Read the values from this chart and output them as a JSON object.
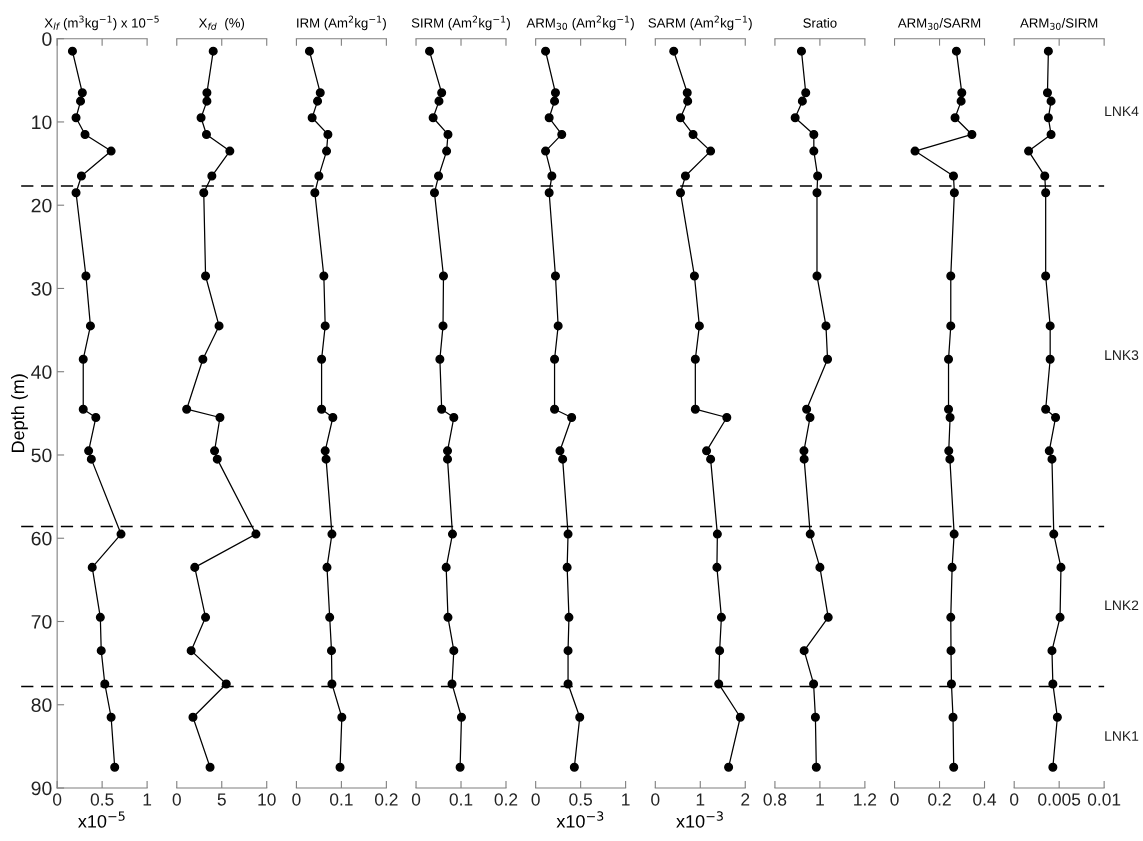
{
  "chart_data": [
    {
      "type": "line",
      "title": "X$_{lf}$ (m$^{3}$kg$^{−1}$) x 10$^{−5}$",
      "xlabel": "x10$^{−5}$",
      "ylabel": "Depth (m)",
      "xlim": [
        0,
        1
      ],
      "xticks": [
        0,
        0.5,
        1
      ],
      "ylim": [
        90,
        0
      ],
      "yticks": [
        0,
        10,
        20,
        30,
        40,
        50,
        60,
        70,
        80,
        90
      ],
      "marker": "circle",
      "line_style": "solid",
      "ref_lines": [
        {
          "axis": "y",
          "value": 17.7,
          "line_style": "dashed"
        },
        {
          "axis": "y",
          "value": 58.6,
          "line_style": "dashed"
        },
        {
          "axis": "y",
          "value": 77.8,
          "line_style": "dashed"
        }
      ],
      "series": [
        {
          "color": "#000000",
          "x": [
            0.17,
            0.28,
            0.26,
            0.21,
            0.31,
            0.6,
            0.27,
            0.21,
            0.32,
            0.37,
            0.29,
            0.29,
            0.43,
            0.35,
            0.38,
            0.71,
            0.39,
            0.48,
            0.49,
            0.53,
            0.6,
            0.64
          ],
          "values": [
            1.5,
            6.5,
            7.5,
            9.5,
            11.5,
            13.5,
            16.5,
            18.5,
            28.5,
            34.5,
            38.5,
            44.5,
            45.5,
            49.5,
            50.5,
            59.5,
            63.5,
            69.5,
            73.5,
            77.5,
            81.5,
            87.5
          ]
        }
      ]
    },
    {
      "type": "line",
      "title": "X$_{fd}$  (%)",
      "xlim": [
        0,
        10
      ],
      "xticks": [
        0,
        5,
        10
      ],
      "ylim": [
        90,
        0
      ],
      "tick_labels": "x",
      "marker": "circle",
      "line_style": "solid",
      "ref_lines": [
        {
          "axis": "y",
          "value": 17.7,
          "line_style": "dashed"
        },
        {
          "axis": "y",
          "value": 58.6,
          "line_style": "dashed"
        },
        {
          "axis": "y",
          "value": 77.8,
          "line_style": "dashed"
        }
      ],
      "series": [
        {
          "color": "#000000",
          "x": [
            4.05,
            3.35,
            3.35,
            2.7,
            3.3,
            5.9,
            3.9,
            3.0,
            3.2,
            4.7,
            2.9,
            1.1,
            4.8,
            4.2,
            4.5,
            8.8,
            2.0,
            3.2,
            1.6,
            5.5,
            1.8,
            3.7
          ],
          "values": [
            1.5,
            6.5,
            7.5,
            9.5,
            11.5,
            13.5,
            16.5,
            18.5,
            28.5,
            34.5,
            38.5,
            44.5,
            45.5,
            49.5,
            50.5,
            59.5,
            63.5,
            69.5,
            73.5,
            77.5,
            81.5,
            87.5
          ]
        }
      ]
    },
    {
      "type": "line",
      "title": "IRM (Am$^{2}$kg$^{−1}$)",
      "xlim": [
        0,
        0.2
      ],
      "xticks": [
        0,
        0.1,
        0.2
      ],
      "ylim": [
        90,
        0
      ],
      "tick_labels": "x",
      "marker": "circle",
      "line_style": "solid",
      "ref_lines": [
        {
          "axis": "y",
          "value": 17.7,
          "line_style": "dashed"
        },
        {
          "axis": "y",
          "value": 58.6,
          "line_style": "dashed"
        },
        {
          "axis": "y",
          "value": 77.8,
          "line_style": "dashed"
        }
      ],
      "series": [
        {
          "color": "#000000",
          "x": [
            0.029,
            0.053,
            0.047,
            0.035,
            0.07,
            0.067,
            0.05,
            0.041,
            0.061,
            0.064,
            0.056,
            0.056,
            0.081,
            0.064,
            0.066,
            0.079,
            0.068,
            0.074,
            0.078,
            0.079,
            0.101,
            0.097
          ],
          "values": [
            1.5,
            6.5,
            7.5,
            9.5,
            11.5,
            13.5,
            16.5,
            18.5,
            28.5,
            34.5,
            38.5,
            44.5,
            45.5,
            49.5,
            50.5,
            59.5,
            63.5,
            69.5,
            73.5,
            77.5,
            81.5,
            87.5
          ]
        }
      ]
    },
    {
      "type": "line",
      "title": "SIRM (Am$^{2}$kg$^{−1}$)",
      "xlim": [
        0,
        0.2
      ],
      "xticks": [
        0,
        0.1,
        0.2
      ],
      "ylim": [
        90,
        0
      ],
      "tick_labels": "x",
      "marker": "circle",
      "line_style": "solid",
      "ref_lines": [
        {
          "axis": "y",
          "value": 17.7,
          "line_style": "dashed"
        },
        {
          "axis": "y",
          "value": 58.6,
          "line_style": "dashed"
        },
        {
          "axis": "y",
          "value": 77.8,
          "line_style": "dashed"
        }
      ],
      "series": [
        {
          "color": "#000000",
          "x": [
            0.03,
            0.057,
            0.051,
            0.038,
            0.071,
            0.068,
            0.05,
            0.041,
            0.061,
            0.06,
            0.053,
            0.057,
            0.084,
            0.07,
            0.07,
            0.081,
            0.067,
            0.071,
            0.084,
            0.08,
            0.101,
            0.098
          ],
          "values": [
            1.5,
            6.5,
            7.5,
            9.5,
            11.5,
            13.5,
            16.5,
            18.5,
            28.5,
            34.5,
            38.5,
            44.5,
            45.5,
            49.5,
            50.5,
            59.5,
            63.5,
            69.5,
            73.5,
            77.5,
            81.5,
            87.5
          ]
        }
      ]
    },
    {
      "type": "line",
      "title": "ARM$_{30}$ (Am$^{2}$kg$^{−1}$)",
      "xlabel": "x10$^{−3}$",
      "xlim": [
        0,
        1
      ],
      "xticks": [
        0,
        0.5,
        1
      ],
      "ylim": [
        90,
        0
      ],
      "tick_labels": "x",
      "marker": "circle",
      "line_style": "solid",
      "ref_lines": [
        {
          "axis": "y",
          "value": 17.7,
          "line_style": "dashed"
        },
        {
          "axis": "y",
          "value": 58.6,
          "line_style": "dashed"
        },
        {
          "axis": "y",
          "value": 77.8,
          "line_style": "dashed"
        }
      ],
      "series": [
        {
          "color": "#000000",
          "x": [
            0.11,
            0.22,
            0.21,
            0.15,
            0.29,
            0.11,
            0.18,
            0.15,
            0.22,
            0.25,
            0.21,
            0.21,
            0.4,
            0.27,
            0.3,
            0.36,
            0.35,
            0.37,
            0.36,
            0.36,
            0.49,
            0.43
          ],
          "values": [
            1.5,
            6.5,
            7.5,
            9.5,
            11.5,
            13.5,
            16.5,
            18.5,
            28.5,
            34.5,
            38.5,
            44.5,
            45.5,
            49.5,
            50.5,
            59.5,
            63.5,
            69.5,
            73.5,
            77.5,
            81.5,
            87.5
          ]
        }
      ]
    },
    {
      "type": "line",
      "title": "SARM (Am$^{2}$kg$^{−1}$)",
      "xlabel": "x10$^{−3}$",
      "xlim": [
        0,
        2
      ],
      "xticks": [
        0,
        1,
        2
      ],
      "ylim": [
        90,
        0
      ],
      "tick_labels": "x",
      "marker": "circle",
      "line_style": "solid",
      "ref_lines": [
        {
          "axis": "y",
          "value": 17.7,
          "line_style": "dashed"
        },
        {
          "axis": "y",
          "value": 58.6,
          "line_style": "dashed"
        },
        {
          "axis": "y",
          "value": 77.8,
          "line_style": "dashed"
        }
      ],
      "series": [
        {
          "color": "#000000",
          "x": [
            0.41,
            0.71,
            0.72,
            0.56,
            0.84,
            1.23,
            0.67,
            0.56,
            0.87,
            0.98,
            0.89,
            0.89,
            1.59,
            1.14,
            1.23,
            1.38,
            1.37,
            1.47,
            1.43,
            1.41,
            1.89,
            1.63
          ],
          "values": [
            1.5,
            6.5,
            7.5,
            9.5,
            11.5,
            13.5,
            16.5,
            18.5,
            28.5,
            34.5,
            38.5,
            44.5,
            45.5,
            49.5,
            50.5,
            59.5,
            63.5,
            69.5,
            73.5,
            77.5,
            81.5,
            87.5
          ]
        }
      ]
    },
    {
      "type": "line",
      "title": "Sratio",
      "xlim": [
        0.8,
        1.2
      ],
      "xticks": [
        0.8,
        1,
        1.2
      ],
      "ylim": [
        90,
        0
      ],
      "tick_labels": "x",
      "marker": "circle",
      "line_style": "solid",
      "ref_lines": [
        {
          "axis": "y",
          "value": 17.7,
          "line_style": "dashed"
        },
        {
          "axis": "y",
          "value": 58.6,
          "line_style": "dashed"
        },
        {
          "axis": "y",
          "value": 77.8,
          "line_style": "dashed"
        }
      ],
      "series": [
        {
          "color": "#000000",
          "x": [
            0.918,
            0.937,
            0.922,
            0.89,
            0.973,
            0.973,
            0.99,
            0.987,
            0.987,
            1.027,
            1.034,
            0.941,
            0.956,
            0.929,
            0.93,
            0.957,
            1.0,
            1.037,
            0.93,
            0.972,
            0.98,
            0.984
          ],
          "values": [
            1.5,
            6.5,
            7.5,
            9.5,
            11.5,
            13.5,
            16.5,
            18.5,
            28.5,
            34.5,
            38.5,
            44.5,
            45.5,
            49.5,
            50.5,
            59.5,
            63.5,
            69.5,
            73.5,
            77.5,
            81.5,
            87.5
          ]
        }
      ]
    },
    {
      "type": "line",
      "title": "ARM$_{30}$/SARM",
      "xlim": [
        0,
        0.4
      ],
      "xticks": [
        0,
        0.2,
        0.4
      ],
      "ylim": [
        90,
        0
      ],
      "tick_labels": "x",
      "marker": "circle",
      "line_style": "solid",
      "ref_lines": [
        {
          "axis": "y",
          "value": 17.7,
          "line_style": "dashed"
        },
        {
          "axis": "y",
          "value": 58.6,
          "line_style": "dashed"
        },
        {
          "axis": "y",
          "value": 77.8,
          "line_style": "dashed"
        }
      ],
      "series": [
        {
          "color": "#000000",
          "x": [
            0.275,
            0.299,
            0.296,
            0.269,
            0.344,
            0.091,
            0.262,
            0.266,
            0.25,
            0.25,
            0.24,
            0.24,
            0.247,
            0.241,
            0.246,
            0.265,
            0.256,
            0.25,
            0.251,
            0.253,
            0.26,
            0.263
          ],
          "values": [
            1.5,
            6.5,
            7.5,
            9.5,
            11.5,
            13.5,
            16.5,
            18.5,
            28.5,
            34.5,
            38.5,
            44.5,
            45.5,
            49.5,
            50.5,
            59.5,
            63.5,
            69.5,
            73.5,
            77.5,
            81.5,
            87.5
          ]
        }
      ]
    },
    {
      "type": "line",
      "title": "ARM$_{30}$/SIRM",
      "xlim": [
        0,
        0.01
      ],
      "xticks": [
        0,
        0.005,
        0.01
      ],
      "ylim": [
        90,
        0
      ],
      "tick_labels": "x",
      "marker": "circle",
      "line_style": "solid",
      "ref_lines": [
        {
          "axis": "y",
          "value": 17.7,
          "line_style": "dashed"
        },
        {
          "axis": "y",
          "value": 58.6,
          "line_style": "dashed"
        },
        {
          "axis": "y",
          "value": 77.8,
          "line_style": "dashed"
        }
      ],
      "annotations": [
        "LNK4",
        "LNK3",
        "LNK2",
        "LNK1"
      ],
      "series": [
        {
          "color": "#000000",
          "x": [
            0.0038,
            0.0037,
            0.0041,
            0.0038,
            0.0041,
            0.0016,
            0.0034,
            0.0035,
            0.0035,
            0.004,
            0.004,
            0.0035,
            0.0046,
            0.0039,
            0.0042,
            0.0044,
            0.0052,
            0.0051,
            0.0042,
            0.0043,
            0.0048,
            0.0043
          ],
          "values": [
            1.5,
            6.5,
            7.5,
            9.5,
            11.5,
            13.5,
            16.5,
            18.5,
            28.5,
            34.5,
            38.5,
            44.5,
            45.5,
            49.5,
            50.5,
            59.5,
            63.5,
            69.5,
            73.5,
            77.5,
            81.5,
            87.5
          ]
        }
      ]
    }
  ]
}
